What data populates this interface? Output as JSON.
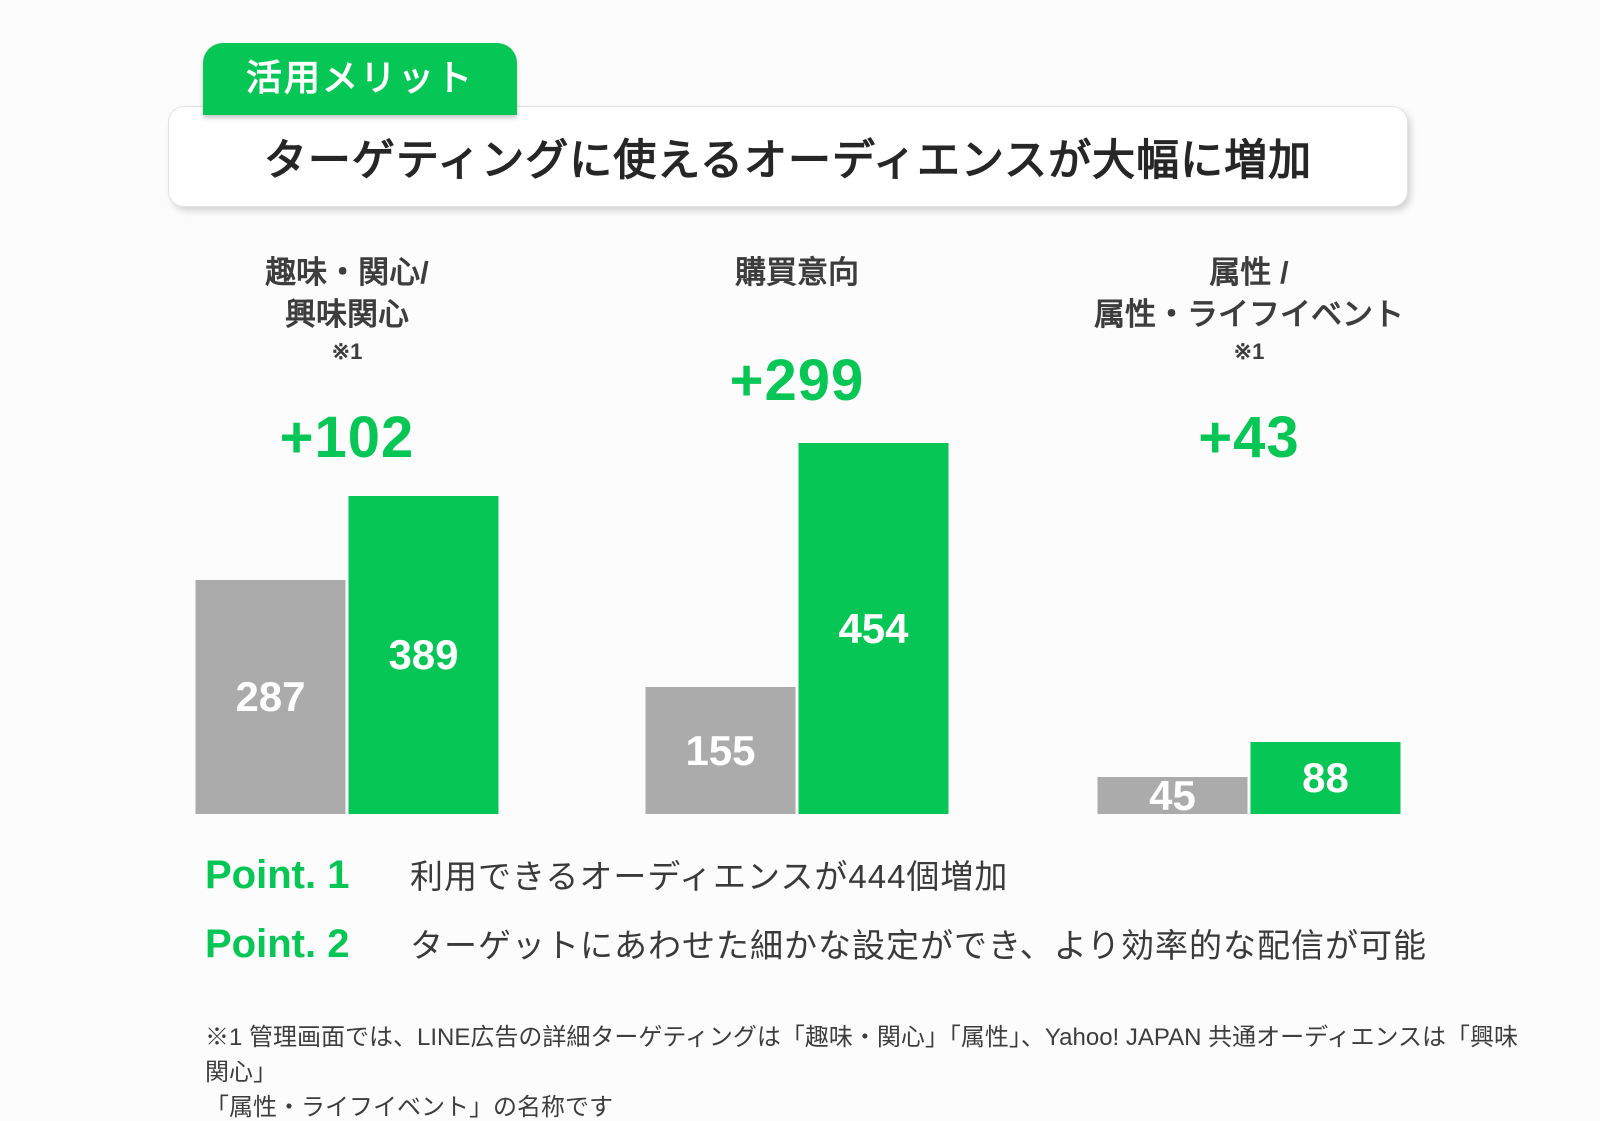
{
  "badge": {
    "label": "活用メリット",
    "color": "#06C755"
  },
  "title": {
    "text": "ターゲティングに使えるオーディエンスが大幅に増加"
  },
  "chart_data": {
    "type": "bar",
    "title": "ターゲティングに使えるオーディエンスが大幅に増加",
    "value_labels_position": "inside",
    "axes_visible": false,
    "colors": {
      "gray_bar": "#ABABAB",
      "green_bar": "#06C755",
      "value_label": "#FFFFFF",
      "delta_label": "#06C755"
    },
    "groups": [
      {
        "category_lines": [
          "趣味・関心/",
          "興味関心"
        ],
        "footnote_marker": "※1",
        "delta_label": "+102",
        "gray_value": 287,
        "green_value": 389
      },
      {
        "category_lines": [
          "購買意向"
        ],
        "footnote_marker": "",
        "delta_label": "+299",
        "gray_value": 155,
        "green_value": 454
      },
      {
        "category_lines": [
          "属性 /",
          "属性・ライフイベント"
        ],
        "footnote_marker": "※1",
        "delta_label": "+43",
        "gray_value": 45,
        "green_value": 88
      }
    ]
  },
  "points": [
    {
      "label": "Point. 1",
      "text": "利用できるオーディエンスが444個増加"
    },
    {
      "label": "Point. 2",
      "text": "ターゲットにあわせた細かな設定ができ、より効率的な配信が可能"
    }
  ],
  "footnote": {
    "lines": [
      "※1 管理画面では、LINE広告の詳細ターゲティングは「趣味・関心」「属性」、Yahoo! JAPAN 共通オーディエンスは「興味関心」",
      "「属性・ライフイベント」の名称です"
    ]
  }
}
